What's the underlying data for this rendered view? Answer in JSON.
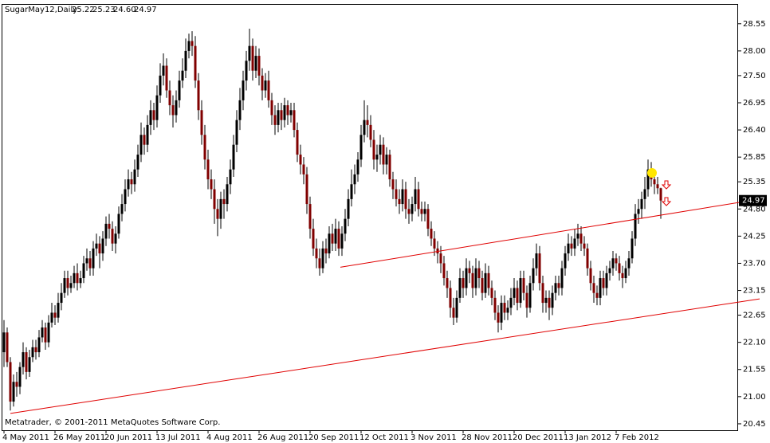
{
  "chart_data": {
    "type": "candlestick",
    "title": "SugarMay12,Daily",
    "header_values": [
      "25.22",
      "25.23",
      "24.60",
      "24.97"
    ],
    "copyright": "Metatrader, © 2001-2011 MetaQuotes Software Corp.",
    "up_color": "#000000",
    "down_color": "#800000",
    "wick_color": "#000000",
    "ylim": [
      20.32,
      28.95
    ],
    "yticks": [
      28.55,
      {
        "value": 28,
        "label": "28.00"
      },
      {
        "value": 27.5,
        "label": "27.50"
      },
      26.95,
      {
        "value": 26.4,
        "label": "26.40"
      },
      25.85,
      25.35,
      {
        "value": 24.8,
        "label": "24.80"
      },
      24.25,
      {
        "value": 23.7,
        "label": "23.70"
      },
      23.15,
      22.65,
      {
        "value": 22.1,
        "label": "22.10"
      },
      21.55,
      {
        "value": 21,
        "label": "21.00"
      },
      20.45
    ],
    "categories": [
      "4 May 2011",
      null,
      null,
      null,
      null,
      null,
      null,
      null,
      null,
      null,
      null,
      null,
      null,
      null,
      null,
      null,
      "26 May 2011",
      null,
      null,
      null,
      null,
      null,
      null,
      null,
      null,
      null,
      null,
      null,
      null,
      null,
      null,
      null,
      "20 Jun 2011",
      null,
      null,
      null,
      null,
      null,
      null,
      null,
      null,
      null,
      null,
      null,
      null,
      null,
      null,
      null,
      "13 Jul 2011",
      null,
      null,
      null,
      null,
      null,
      null,
      null,
      null,
      null,
      null,
      null,
      null,
      null,
      null,
      null,
      "4 Aug 2011",
      null,
      null,
      null,
      null,
      null,
      null,
      null,
      null,
      null,
      null,
      null,
      null,
      null,
      null,
      null,
      "26 Aug 2011",
      null,
      null,
      null,
      null,
      null,
      null,
      null,
      null,
      null,
      null,
      null,
      null,
      null,
      null,
      null,
      "20 Sep 2011",
      null,
      null,
      null,
      null,
      null,
      null,
      null,
      null,
      null,
      null,
      null,
      null,
      null,
      null,
      null,
      "12 Oct 2011",
      null,
      null,
      null,
      null,
      null,
      null,
      null,
      null,
      null,
      null,
      null,
      null,
      null,
      null,
      null,
      "3 Nov 2011",
      null,
      null,
      null,
      null,
      null,
      null,
      null,
      null,
      null,
      null,
      null,
      null,
      null,
      null,
      null,
      "28 Nov 2011",
      null,
      null,
      null,
      null,
      null,
      null,
      null,
      null,
      null,
      null,
      null,
      null,
      null,
      null,
      null,
      "20 Dec 2011",
      null,
      null,
      null,
      null,
      null,
      null,
      null,
      null,
      null,
      null,
      null,
      null,
      null,
      null,
      null,
      "13 Jan 2012",
      null,
      null,
      null,
      null,
      null,
      null,
      null,
      null,
      null,
      null,
      null,
      null,
      null,
      null,
      null,
      "7 Feb 2012",
      null,
      null,
      null,
      null,
      null,
      null,
      null,
      null,
      null,
      null,
      null,
      null,
      null,
      null
    ],
    "open": [
      21.9,
      22.3,
      21.7,
      20.9,
      21.3,
      21.2,
      21.6,
      21.9,
      21.5,
      21.8,
      22.0,
      21.9,
      22.2,
      22.4,
      22.1,
      22.5,
      22.7,
      22.6,
      22.9,
      23.1,
      23.4,
      23.2,
      23.3,
      23.5,
      23.3,
      23.4,
      23.7,
      23.8,
      23.6,
      24.0,
      24.1,
      23.9,
      24.2,
      24.5,
      24.4,
      24.1,
      24.3,
      24.7,
      24.9,
      25.2,
      25.4,
      25.3,
      25.6,
      25.9,
      26.3,
      26.1,
      26.5,
      26.8,
      26.6,
      27.1,
      27.5,
      27.7,
      27.2,
      26.9,
      26.7,
      27.0,
      27.4,
      27.6,
      28.0,
      28.2,
      28.1,
      27.4,
      26.8,
      26.3,
      25.8,
      25.4,
      25.2,
      24.8,
      24.6,
      25.0,
      24.9,
      25.3,
      25.6,
      26.1,
      26.6,
      27.0,
      27.4,
      27.8,
      28.1,
      27.6,
      27.9,
      27.5,
      27.2,
      27.4,
      27.0,
      26.7,
      26.5,
      26.8,
      26.6,
      26.9,
      26.7,
      26.8,
      26.4,
      25.9,
      25.7,
      25.5,
      24.9,
      24.4,
      24.0,
      23.8,
      23.6,
      24.0,
      23.9,
      24.3,
      24.1,
      24.4,
      24.0,
      24.3,
      24.6,
      25.0,
      25.3,
      25.5,
      25.8,
      26.3,
      26.6,
      26.5,
      26.2,
      25.8,
      25.9,
      26.1,
      25.7,
      25.9,
      25.4,
      25.2,
      25.0,
      24.9,
      25.2,
      24.8,
      24.7,
      24.9,
      25.2,
      24.8,
      24.7,
      24.8,
      24.4,
      24.2,
      24.0,
      23.9,
      23.7,
      23.4,
      23.2,
      22.8,
      22.6,
      23.0,
      23.4,
      23.2,
      23.6,
      23.5,
      23.2,
      23.6,
      23.4,
      23.1,
      23.5,
      23.2,
      23.0,
      22.7,
      22.5,
      22.9,
      22.7,
      22.8,
      23.0,
      23.2,
      22.9,
      23.4,
      23.1,
      22.8,
      23.3,
      23.6,
      23.9,
      23.3,
      22.9,
      23.0,
      22.8,
      23.1,
      23.3,
      23.2,
      23.6,
      23.9,
      24.1,
      24.0,
      24.2,
      24.3,
      24.1,
      24.0,
      23.6,
      23.3,
      23.1,
      23.0,
      23.4,
      23.2,
      23.5,
      23.6,
      23.8,
      23.7,
      23.5,
      23.4,
      23.6,
      23.8,
      24.2,
      24.7,
      24.8,
      25.0,
      25.2,
      25.6,
      25.4,
      25.3,
      25.22
    ],
    "high": [
      22.55,
      22.4,
      21.8,
      21.45,
      21.5,
      21.7,
      22.1,
      22.0,
      21.95,
      22.15,
      22.15,
      22.35,
      22.55,
      22.5,
      22.65,
      22.9,
      22.85,
      23.1,
      23.3,
      23.55,
      23.55,
      23.45,
      23.65,
      23.7,
      23.55,
      23.85,
      24.0,
      23.95,
      24.15,
      24.3,
      24.25,
      24.35,
      24.65,
      24.7,
      24.55,
      24.45,
      24.85,
      25.1,
      25.4,
      25.6,
      25.55,
      25.8,
      26.1,
      26.55,
      26.45,
      26.7,
      27.0,
      26.95,
      27.3,
      27.75,
      27.95,
      27.85,
      27.4,
      27.1,
      27.2,
      27.6,
      27.85,
      28.25,
      28.35,
      28.4,
      28.3,
      27.55,
      27.0,
      26.5,
      26.0,
      25.6,
      25.4,
      25.0,
      25.15,
      25.2,
      25.45,
      25.8,
      26.3,
      26.8,
      27.25,
      27.6,
      28.0,
      28.45,
      28.25,
      28.1,
      28.05,
      27.65,
      27.55,
      27.6,
      27.15,
      26.9,
      26.95,
      26.95,
      27.05,
      27.0,
      26.95,
      26.95,
      26.55,
      26.1,
      25.85,
      25.65,
      25.05,
      24.6,
      24.2,
      24.0,
      24.15,
      24.2,
      24.45,
      24.5,
      24.6,
      24.55,
      24.45,
      24.8,
      25.2,
      25.6,
      25.7,
      25.95,
      26.5,
      27.0,
      26.9,
      26.7,
      26.4,
      26.1,
      26.3,
      26.25,
      26.05,
      26.0,
      25.55,
      25.4,
      25.2,
      25.4,
      25.35,
      25.0,
      25.05,
      25.45,
      25.35,
      24.95,
      24.95,
      24.9,
      24.55,
      24.35,
      24.15,
      24.05,
      23.85,
      23.55,
      23.35,
      23.0,
      23.15,
      23.6,
      23.55,
      23.8,
      23.75,
      23.65,
      23.8,
      23.75,
      23.55,
      23.7,
      23.65,
      23.35,
      23.15,
      22.85,
      23.05,
      23.05,
      22.95,
      23.2,
      23.4,
      23.35,
      23.55,
      23.55,
      23.25,
      23.45,
      23.8,
      24.1,
      24.05,
      23.45,
      23.15,
      23.15,
      23.25,
      23.45,
      23.45,
      23.75,
      24.05,
      24.3,
      24.25,
      24.4,
      24.5,
      24.45,
      24.25,
      24.1,
      23.75,
      23.45,
      23.25,
      23.55,
      23.55,
      23.65,
      23.75,
      23.95,
      23.9,
      23.85,
      23.65,
      23.75,
      23.95,
      24.35,
      24.9,
      25.0,
      25.15,
      25.45,
      25.8,
      25.75,
      25.55,
      25.45,
      25.23
    ],
    "low": [
      21.6,
      21.6,
      20.72,
      20.8,
      21.0,
      21.05,
      21.45,
      21.35,
      21.4,
      21.7,
      21.75,
      21.8,
      22.1,
      21.95,
      22.0,
      22.4,
      22.45,
      22.5,
      22.75,
      23.0,
      23.05,
      23.1,
      23.2,
      23.15,
      23.2,
      23.3,
      23.55,
      23.45,
      23.45,
      23.85,
      23.6,
      23.75,
      24.05,
      24.2,
      23.95,
      23.9,
      24.2,
      24.55,
      24.75,
      25.05,
      25.1,
      25.15,
      25.45,
      25.75,
      25.9,
      25.95,
      26.3,
      26.4,
      26.45,
      26.95,
      27.3,
      27.05,
      26.7,
      26.45,
      26.55,
      26.85,
      27.25,
      27.45,
      27.85,
      27.9,
      27.25,
      26.6,
      26.1,
      25.6,
      25.2,
      25.0,
      24.5,
      24.25,
      24.4,
      24.6,
      24.75,
      25.1,
      25.45,
      25.95,
      26.4,
      26.8,
      27.2,
      27.6,
      27.4,
      27.45,
      27.3,
      27.0,
      27.05,
      26.85,
      26.5,
      26.3,
      26.35,
      26.4,
      26.45,
      26.5,
      26.55,
      26.25,
      25.75,
      25.5,
      25.3,
      24.7,
      24.2,
      23.85,
      23.6,
      23.45,
      23.5,
      23.7,
      23.8,
      23.95,
      23.95,
      23.85,
      23.85,
      24.15,
      24.45,
      24.85,
      25.1,
      25.35,
      25.65,
      26.15,
      26.25,
      26.05,
      25.6,
      25.55,
      25.7,
      25.5,
      25.5,
      25.25,
      25.0,
      24.85,
      24.7,
      24.75,
      24.6,
      24.5,
      24.55,
      24.75,
      24.65,
      24.55,
      24.55,
      24.25,
      24.05,
      23.85,
      23.7,
      23.5,
      23.25,
      23.0,
      22.6,
      22.45,
      22.5,
      22.9,
      23.0,
      23.05,
      23.3,
      23.0,
      23.05,
      23.2,
      22.95,
      23.0,
      23.05,
      22.85,
      22.55,
      22.3,
      22.35,
      22.55,
      22.55,
      22.65,
      22.85,
      22.75,
      22.8,
      22.95,
      22.6,
      22.7,
      23.15,
      23.45,
      23.15,
      22.7,
      22.7,
      22.55,
      22.65,
      22.95,
      23.05,
      23.05,
      23.45,
      23.75,
      23.85,
      23.85,
      24.05,
      23.95,
      23.85,
      23.45,
      23.15,
      22.9,
      22.85,
      22.85,
      23.05,
      23.05,
      23.35,
      23.45,
      23.55,
      23.35,
      23.2,
      23.3,
      23.45,
      23.7,
      24.05,
      24.5,
      24.6,
      24.8,
      25.05,
      25.25,
      25.1,
      25.1,
      24.6
    ],
    "close": [
      22.3,
      21.7,
      20.9,
      21.3,
      21.2,
      21.6,
      21.9,
      21.5,
      21.8,
      22.0,
      21.9,
      22.2,
      22.4,
      22.1,
      22.5,
      22.7,
      22.6,
      22.9,
      23.1,
      23.4,
      23.2,
      23.3,
      23.5,
      23.3,
      23.4,
      23.7,
      23.8,
      23.6,
      24.0,
      24.1,
      23.9,
      24.2,
      24.5,
      24.4,
      24.1,
      24.3,
      24.7,
      24.9,
      25.2,
      25.4,
      25.3,
      25.6,
      25.9,
      26.3,
      26.1,
      26.5,
      26.8,
      26.6,
      27.1,
      27.5,
      27.7,
      27.2,
      26.9,
      26.7,
      27.0,
      27.4,
      27.6,
      28.0,
      28.2,
      28.1,
      27.4,
      26.8,
      26.3,
      25.8,
      25.4,
      25.2,
      24.8,
      24.6,
      25.0,
      24.9,
      25.3,
      25.6,
      26.1,
      26.6,
      27.0,
      27.4,
      27.8,
      28.1,
      27.6,
      27.9,
      27.5,
      27.2,
      27.4,
      27.0,
      26.7,
      26.5,
      26.8,
      26.6,
      26.9,
      26.7,
      26.8,
      26.4,
      25.9,
      25.7,
      25.5,
      24.9,
      24.4,
      24.0,
      23.8,
      23.6,
      24.0,
      23.9,
      24.3,
      24.1,
      24.4,
      24.0,
      24.3,
      24.6,
      25.0,
      25.3,
      25.5,
      25.8,
      26.3,
      26.6,
      26.5,
      26.2,
      25.8,
      25.9,
      26.1,
      25.7,
      25.9,
      25.4,
      25.2,
      25.0,
      24.9,
      25.2,
      24.8,
      24.7,
      24.9,
      25.2,
      24.8,
      24.7,
      24.8,
      24.4,
      24.2,
      24.0,
      23.9,
      23.7,
      23.4,
      23.2,
      22.8,
      22.6,
      23.0,
      23.4,
      23.2,
      23.6,
      23.5,
      23.2,
      23.6,
      23.4,
      23.1,
      23.5,
      23.2,
      23.0,
      22.7,
      22.5,
      22.9,
      22.7,
      22.8,
      23.0,
      23.2,
      22.9,
      23.4,
      23.1,
      22.8,
      23.3,
      23.6,
      23.9,
      23.3,
      22.9,
      23.0,
      22.8,
      23.1,
      23.3,
      23.2,
      23.6,
      23.9,
      24.1,
      24.0,
      24.2,
      24.3,
      24.1,
      24.0,
      23.6,
      23.3,
      23.1,
      23.0,
      23.4,
      23.2,
      23.5,
      23.6,
      23.8,
      23.7,
      23.5,
      23.4,
      23.6,
      23.8,
      24.2,
      24.7,
      24.8,
      25.0,
      25.2,
      25.6,
      25.4,
      25.3,
      25.22,
      24.97
    ],
    "trendlines": [
      {
        "color": "#e00000",
        "x": [
          2,
          237
        ],
        "y": [
          20.66,
          22.98
        ]
      },
      {
        "color": "#e00000",
        "x": [
          105.5,
          237
        ],
        "y": [
          23.62,
          25.0
        ]
      }
    ]
  }
}
